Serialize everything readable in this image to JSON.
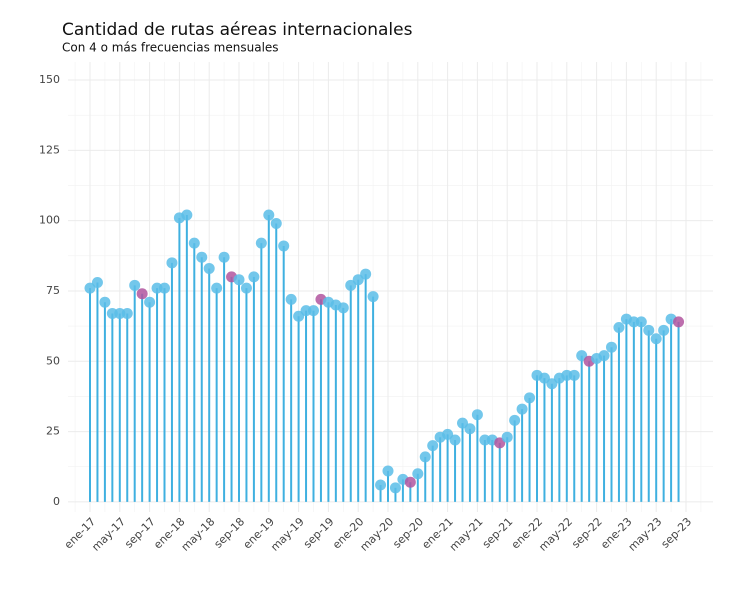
{
  "chart_data": {
    "type": "lollipop",
    "title": "Cantidad de rutas aéreas internacionales",
    "subtitle": "Con 4 o más frecuencias mensuales",
    "categories": [
      "ene-17",
      null,
      null,
      null,
      "may-17",
      null,
      null,
      null,
      "sep-17",
      null,
      null,
      null,
      "ene-18",
      null,
      null,
      null,
      "may-18",
      null,
      null,
      null,
      "sep-18",
      null,
      null,
      null,
      "ene-19",
      null,
      null,
      null,
      "may-19",
      null,
      null,
      null,
      "sep-19",
      null,
      null,
      null,
      "ene-20",
      null,
      null,
      null,
      "may-20",
      null,
      null,
      null,
      "sep-20",
      null,
      null,
      null,
      "ene-21",
      null,
      null,
      null,
      "may-21",
      null,
      null,
      null,
      "sep-21",
      null,
      null,
      null,
      "ene-22",
      null,
      null,
      null,
      "may-22",
      null,
      null,
      null,
      "sep-22",
      null,
      null,
      null,
      "ene-23",
      null,
      null,
      null,
      "may-23",
      null,
      null,
      null,
      "sep-23"
    ],
    "values": [
      76,
      78,
      71,
      67,
      67,
      67,
      77,
      74,
      71,
      76,
      76,
      85,
      101,
      102,
      92,
      87,
      83,
      76,
      87,
      80,
      79,
      76,
      80,
      92,
      102,
      99,
      91,
      72,
      66,
      68,
      68,
      72,
      71,
      70,
      69,
      77,
      79,
      81,
      73,
      6,
      11,
      5,
      8,
      7,
      10,
      16,
      20,
      23,
      24,
      22,
      28,
      26,
      31,
      22,
      22,
      21,
      23,
      29,
      33,
      37,
      45,
      44,
      42,
      44,
      45,
      45,
      52,
      50,
      51,
      52,
      55,
      62,
      65,
      64,
      64,
      61,
      58,
      61,
      65,
      64,
      null
    ],
    "colors": [
      "#5bbde8",
      "#5bbde8",
      "#5bbde8",
      "#5bbde8",
      "#5bbde8",
      "#5bbde8",
      "#5bbde8",
      "#b1559f",
      "#5bbde8",
      "#5bbde8",
      "#5bbde8",
      "#5bbde8",
      "#5bbde8",
      "#5bbde8",
      "#5bbde8",
      "#5bbde8",
      "#5bbde8",
      "#5bbde8",
      "#5bbde8",
      "#b1559f",
      "#5bbde8",
      "#5bbde8",
      "#5bbde8",
      "#5bbde8",
      "#5bbde8",
      "#5bbde8",
      "#5bbde8",
      "#5bbde8",
      "#5bbde8",
      "#5bbde8",
      "#5bbde8",
      "#b1559f",
      "#5bbde8",
      "#5bbde8",
      "#5bbde8",
      "#5bbde8",
      "#5bbde8",
      "#5bbde8",
      "#5bbde8",
      "#5bbde8",
      "#5bbde8",
      "#5bbde8",
      "#5bbde8",
      "#b1559f",
      "#5bbde8",
      "#5bbde8",
      "#5bbde8",
      "#5bbde8",
      "#5bbde8",
      "#5bbde8",
      "#5bbde8",
      "#5bbde8",
      "#5bbde8",
      "#5bbde8",
      "#5bbde8",
      "#b1559f",
      "#5bbde8",
      "#5bbde8",
      "#5bbde8",
      "#5bbde8",
      "#5bbde8",
      "#5bbde8",
      "#5bbde8",
      "#5bbde8",
      "#5bbde8",
      "#5bbde8",
      "#5bbde8",
      "#b1559f",
      "#5bbde8",
      "#5bbde8",
      "#5bbde8",
      "#5bbde8",
      "#5bbde8",
      "#5bbde8",
      "#5bbde8",
      "#5bbde8",
      "#5bbde8",
      "#5bbde8",
      "#5bbde8",
      "#b1559f",
      null
    ],
    "stem_color": "#3fb0e0",
    "ylim": [
      -3.6,
      156.4
    ],
    "yticks": [
      0,
      25,
      50,
      75,
      100,
      125,
      150
    ],
    "grid": true
  }
}
